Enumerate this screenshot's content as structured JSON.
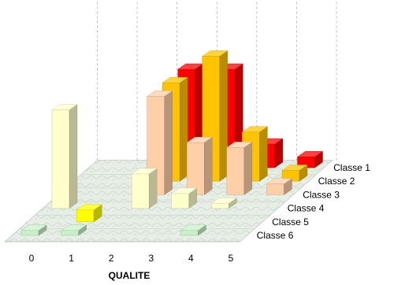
{
  "chart_data": {
    "type": "bar",
    "subtype": "3d-column-depth",
    "title": "",
    "xlabel": "QUALITE",
    "ylabel": "",
    "categories": [
      "0",
      "1",
      "2",
      "3",
      "4",
      "5"
    ],
    "series": [
      {
        "name": "Classe 1",
        "color": "#ff0000",
        "values": [
          0,
          0,
          100,
          100,
          24,
          11
        ]
      },
      {
        "name": "Classe 2",
        "color": "#ffc400",
        "values": [
          0,
          0,
          100,
          127,
          50,
          11
        ]
      },
      {
        "name": "Classe 3",
        "color": "#ffcfa8",
        "values": [
          0,
          0,
          100,
          53,
          48,
          11
        ]
      },
      {
        "name": "Classe 4",
        "color": "#ffffcc",
        "values": [
          100,
          0,
          35,
          15,
          5,
          0
        ]
      },
      {
        "name": "Classe 5",
        "color": "#ffff00",
        "values": [
          0,
          12,
          0,
          0,
          0,
          0
        ]
      },
      {
        "name": "Classe 6",
        "color": "#c8f0c8",
        "values": [
          5,
          5,
          0,
          0,
          5,
          0
        ]
      }
    ],
    "grid": true,
    "legend": "series labels along depth axis at right",
    "colors": {
      "floor": "#e4ece4",
      "gridline": "#999999",
      "text": "#000000"
    }
  }
}
